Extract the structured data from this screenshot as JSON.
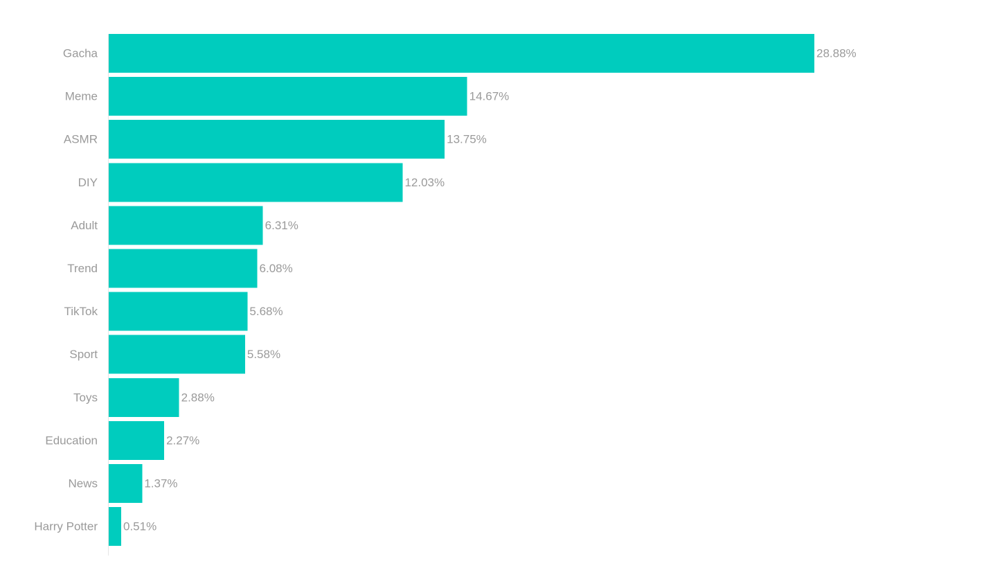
{
  "chart_data": {
    "type": "bar",
    "orientation": "horizontal",
    "categories": [
      "Gacha",
      "Meme",
      "ASMR",
      "DIY",
      "Adult",
      "Trend",
      "TikTok",
      "Sport",
      "Toys",
      "Education",
      "News",
      "Harry Potter"
    ],
    "values": [
      28.88,
      14.67,
      13.75,
      12.03,
      6.31,
      6.08,
      5.68,
      5.58,
      2.88,
      2.27,
      1.37,
      0.51
    ],
    "value_labels": [
      "28.88%",
      "14.67%",
      "13.75%",
      "12.03%",
      "6.31%",
      "6.08%",
      "5.68%",
      "5.58%",
      "2.88%",
      "2.27%",
      "1.37%",
      "0.51%"
    ],
    "title": "",
    "xlabel": "",
    "ylabel": "",
    "xlim": [
      0,
      28.88
    ],
    "grid": false,
    "legend": "none",
    "colors": {
      "bar": "#00CCBE",
      "label": "#9a9a9a",
      "axis": "#e6e6e6"
    }
  }
}
